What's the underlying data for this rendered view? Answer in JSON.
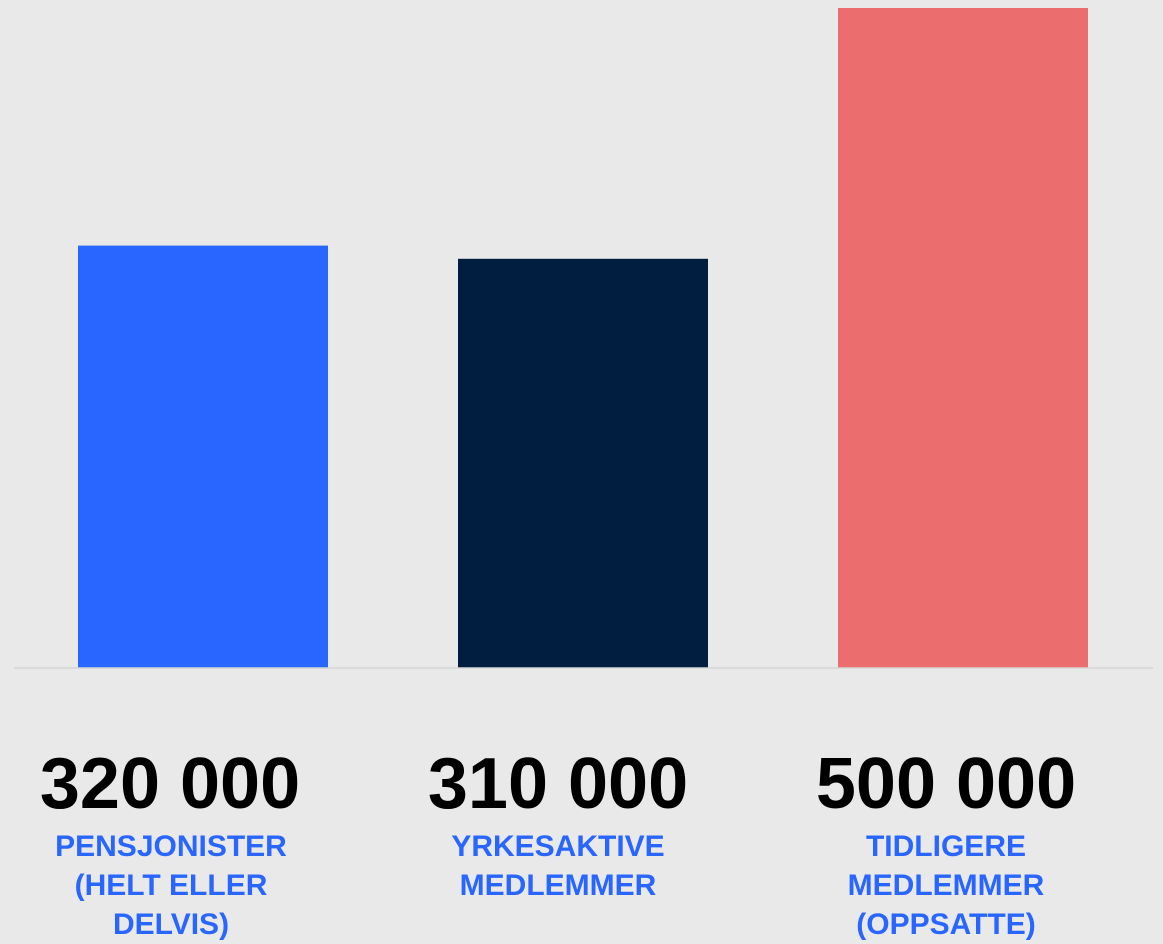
{
  "chart_data": {
    "type": "bar",
    "categories": [
      "PENSJONISTER\n(HELT ELLER\nDELVIS)",
      "YRKESAKTIVE\nMEDLEMMER",
      "TIDLIGERE\nMEDLEMMER\n(OPPSATTE)"
    ],
    "values": [
      320000,
      310000,
      500000
    ],
    "value_labels": [
      "320 000",
      "310 000",
      "500 000"
    ],
    "ylim": [
      0,
      500000
    ],
    "grid": false,
    "colors": {
      "bars": [
        "#2866ff",
        "#011e41",
        "#eb6d6d"
      ],
      "category_text": "#2866ff",
      "value_text": "#000000",
      "background": "#e9e9ea",
      "baseline": "#d6d6d6"
    }
  }
}
